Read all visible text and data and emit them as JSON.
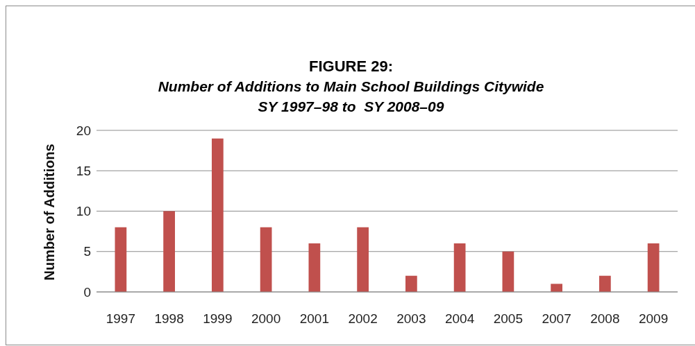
{
  "chart_data": {
    "type": "bar",
    "title": "FIGURE 29:",
    "subtitle": "Number of Additions to Main School Buildings Citywide\nSY 1997–98 to  SY 2008–09",
    "ylabel": "Number of Additions",
    "categories": [
      "1997",
      "1998",
      "1999",
      "2000",
      "2001",
      "2002",
      "2003",
      "2004",
      "2005",
      "2007",
      "2008",
      "2009"
    ],
    "values": [
      8,
      10,
      19,
      8,
      6,
      8,
      2,
      6,
      5,
      1,
      2,
      6
    ],
    "color": "#c0504d",
    "ylim": [
      0,
      20
    ],
    "yticks": [
      0,
      5,
      10,
      15,
      20
    ],
    "grid": "y"
  }
}
